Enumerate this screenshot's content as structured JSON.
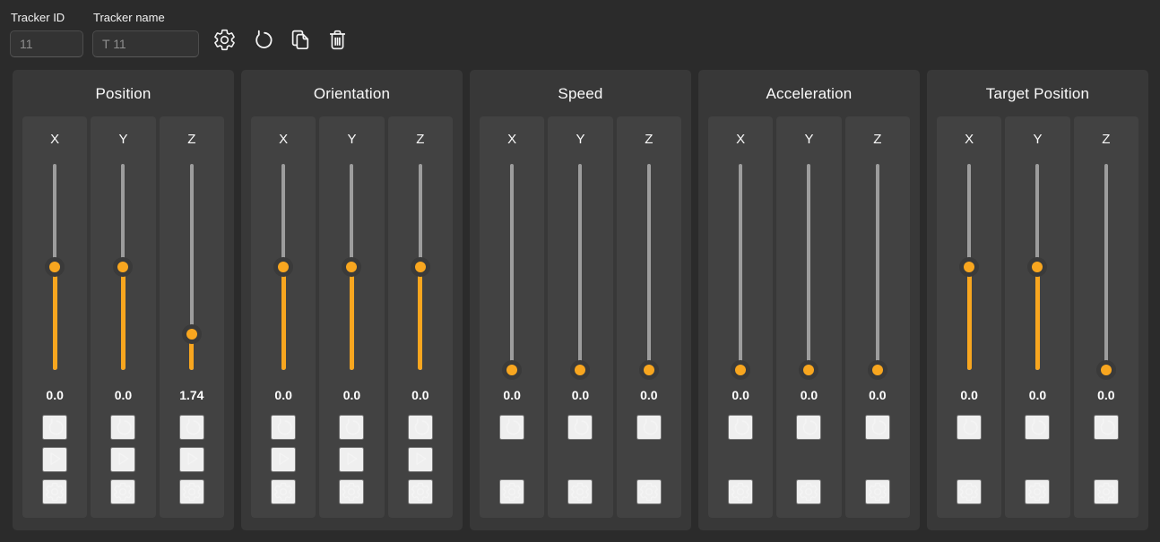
{
  "colors": {
    "page_bg": "#2b2b2b",
    "panel_bg": "#383838",
    "column_bg": "#424242",
    "accent_orange": "#f8a61f",
    "track_gray": "#9d9d9d",
    "thumb_ring": "#3a3a3a",
    "input_text_gray": "#8f8f8f"
  },
  "header": {
    "tracker_id": {
      "label": "Tracker ID",
      "value": "11"
    },
    "tracker_name": {
      "label": "Tracker name",
      "value": "T 11"
    },
    "buttons": [
      {
        "name": "settings",
        "icon": "gear-icon"
      },
      {
        "name": "reset",
        "icon": "undo-icon"
      },
      {
        "name": "duplicate",
        "icon": "copy-icon"
      },
      {
        "name": "delete",
        "icon": "trash-icon"
      }
    ]
  },
  "column_controls": {
    "reset_icon": "undo-icon",
    "play_icon": "play-icon",
    "settings_icon": "gear-icon"
  },
  "panels": [
    {
      "title": "Position",
      "has_play": true,
      "columns": [
        {
          "axis": "X",
          "value": "0.0",
          "thumb_position": 0.5
        },
        {
          "axis": "Y",
          "value": "0.0",
          "thumb_position": 0.5
        },
        {
          "axis": "Z",
          "value": "1.74",
          "thumb_position": 0.826
        }
      ]
    },
    {
      "title": "Orientation",
      "has_play": true,
      "columns": [
        {
          "axis": "X",
          "value": "0.0",
          "thumb_position": 0.5
        },
        {
          "axis": "Y",
          "value": "0.0",
          "thumb_position": 0.5
        },
        {
          "axis": "Z",
          "value": "0.0",
          "thumb_position": 0.5
        }
      ]
    },
    {
      "title": "Speed",
      "has_play": false,
      "columns": [
        {
          "axis": "X",
          "value": "0.0",
          "thumb_position": 1.0
        },
        {
          "axis": "Y",
          "value": "0.0",
          "thumb_position": 1.0
        },
        {
          "axis": "Z",
          "value": "0.0",
          "thumb_position": 1.0
        }
      ]
    },
    {
      "title": "Acceleration",
      "has_play": false,
      "columns": [
        {
          "axis": "X",
          "value": "0.0",
          "thumb_position": 1.0
        },
        {
          "axis": "Y",
          "value": "0.0",
          "thumb_position": 1.0
        },
        {
          "axis": "Z",
          "value": "0.0",
          "thumb_position": 1.0
        }
      ]
    },
    {
      "title": "Target Position",
      "has_play": false,
      "columns": [
        {
          "axis": "X",
          "value": "0.0",
          "thumb_position": 0.5
        },
        {
          "axis": "Y",
          "value": "0.0",
          "thumb_position": 0.5
        },
        {
          "axis": "Z",
          "value": "0.0",
          "thumb_position": 1.0
        }
      ]
    }
  ]
}
